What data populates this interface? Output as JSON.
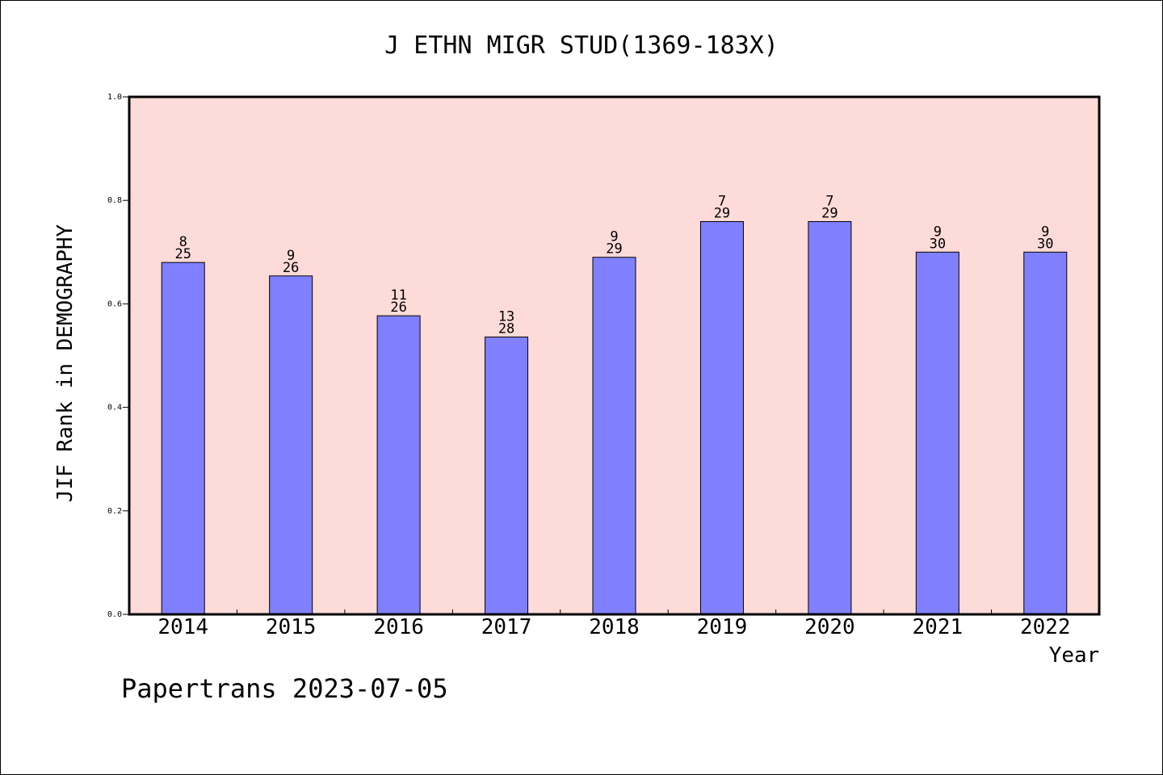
{
  "chart_data": {
    "type": "bar",
    "title": "J ETHN MIGR STUD(1369-183X)",
    "xlabel": "Year",
    "ylabel": "JIF Rank in DEMOGRAPHY",
    "ylim": [
      0,
      1.0
    ],
    "yticks": [
      "0.0",
      "0.2",
      "0.4",
      "0.6",
      "0.8",
      "1.0"
    ],
    "categories": [
      "2014",
      "2015",
      "2016",
      "2017",
      "2018",
      "2019",
      "2020",
      "2021",
      "2022"
    ],
    "values": [
      0.68,
      0.654,
      0.577,
      0.536,
      0.69,
      0.759,
      0.759,
      0.7,
      0.7
    ],
    "rank_labels": [
      "8",
      "9",
      "11",
      "13",
      "9",
      "7",
      "7",
      "9",
      "9"
    ],
    "total_labels": [
      "25",
      "26",
      "26",
      "28",
      "29",
      "29",
      "29",
      "30",
      "30"
    ],
    "grid": false,
    "colors": {
      "plot_background": "#fddbd8",
      "bar_fill": "#8080ff",
      "bar_edge": "#000000"
    }
  },
  "footer": {
    "text": "Papertrans 2023-07-05"
  }
}
